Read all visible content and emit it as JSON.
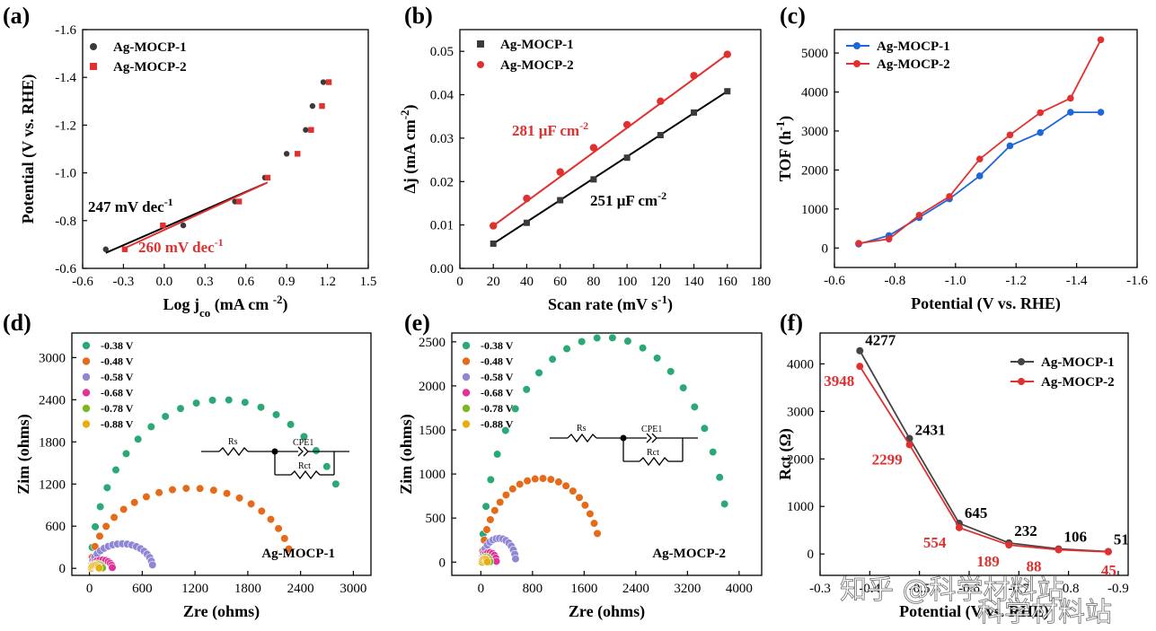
{
  "colors": {
    "black": "#000000",
    "red": "#e03030",
    "blue": "#1f66d8",
    "darkgray": "#3a3a3a",
    "green": "#2aa876",
    "orange": "#e56b1a",
    "purple": "#8f86d6",
    "magenta": "#e0329a",
    "lime": "#79b81f",
    "yellow": "#e8ad10",
    "gray": "#444444"
  },
  "chart_data": [
    {
      "panel": "(a)",
      "type": "scatter",
      "xlabel": "Log j",
      "xlabel_sub": "co",
      "xlabel_unit": " (mA cm ",
      "xlabel_sup": "-2",
      "xlabel_end": ")",
      "ylabel": "Potential (V vs. RHE)",
      "xlim": [
        -0.6,
        1.5
      ],
      "ylim": [
        -0.6,
        -1.6
      ],
      "y_inverted": true,
      "xticks": [
        -0.6,
        -0.3,
        0.0,
        0.3,
        0.6,
        0.9,
        1.2,
        1.5
      ],
      "xtick_labels": [
        "-0.6",
        "-0.3",
        "0.0",
        "0.3",
        "0.6",
        "0.9",
        "1.2",
        "1.5"
      ],
      "yticks": [
        -0.6,
        -0.8,
        -1.0,
        -1.2,
        -1.4,
        -1.6
      ],
      "ytick_labels": [
        "-0.6",
        "-0.8",
        "-1.0",
        "-1.2",
        "-1.4",
        "-1.6"
      ],
      "series": [
        {
          "name": "Ag-MOCP-1",
          "marker": "circle",
          "color": "#3a3a3a",
          "x": [
            -0.43,
            0.14,
            0.52,
            0.74,
            0.9,
            1.04,
            1.09,
            1.17
          ],
          "y": [
            -0.68,
            -0.78,
            -0.88,
            -0.98,
            -1.08,
            -1.18,
            -1.28,
            -1.38
          ],
          "fit": {
            "x": [
              -0.43,
              0.74
            ],
            "y": [
              -0.665,
              -0.955
            ],
            "color": "#000000"
          }
        },
        {
          "name": "Ag-MOCP-2",
          "marker": "square",
          "color": "#e03030",
          "x": [
            -0.29,
            -0.01,
            0.55,
            0.76,
            0.98,
            1.08,
            1.16,
            1.21
          ],
          "y": [
            -0.68,
            -0.78,
            -0.88,
            -0.98,
            -1.08,
            -1.18,
            -1.28,
            -1.38
          ],
          "fit": {
            "x": [
              -0.29,
              0.76
            ],
            "y": [
              -0.685,
              -0.96
            ],
            "color": "#e03030"
          }
        }
      ],
      "annotations": [
        {
          "text": "247 mV dec",
          "sup": "-1",
          "color": "#000000"
        },
        {
          "text": "260 mV dec",
          "sup": "-1",
          "color": "#e03030"
        }
      ]
    },
    {
      "panel": "(b)",
      "type": "scatter",
      "xlabel": "Scan rate (mV s",
      "xlabel_sup": "-1",
      "xlabel_end": ")",
      "ylabel": "Δj (mA cm",
      "ylabel_sup": "-2",
      "ylabel_end": ")",
      "xlim": [
        0,
        180
      ],
      "ylim": [
        0.0,
        0.055
      ],
      "xticks": [
        0,
        20,
        40,
        60,
        80,
        100,
        120,
        140,
        160,
        180
      ],
      "xtick_labels": [
        "0",
        "20",
        "40",
        "60",
        "80",
        "100",
        "120",
        "140",
        "160",
        "180"
      ],
      "yticks": [
        0.0,
        0.01,
        0.02,
        0.03,
        0.04,
        0.05
      ],
      "ytick_labels": [
        "0.00",
        "0.01",
        "0.02",
        "0.03",
        "0.04",
        "0.05"
      ],
      "series": [
        {
          "name": "Ag-MOCP-1",
          "marker": "square",
          "color": "#3a3a3a",
          "line": "#000000",
          "x": [
            20,
            40,
            60,
            80,
            100,
            120,
            140,
            160
          ],
          "y": [
            0.0057,
            0.0105,
            0.0157,
            0.0205,
            0.0255,
            0.0307,
            0.0359,
            0.0408
          ]
        },
        {
          "name": "Ag-MOCP-2",
          "marker": "circle",
          "color": "#e03030",
          "line": "#e03030",
          "x": [
            20,
            40,
            60,
            80,
            100,
            120,
            140,
            160
          ],
          "y": [
            0.0098,
            0.0161,
            0.0222,
            0.0278,
            0.0331,
            0.0385,
            0.0444,
            0.0493
          ]
        }
      ],
      "annotations": [
        {
          "text": "281 μF cm",
          "sup": "-2",
          "color": "#e03030"
        },
        {
          "text": "251 μF cm",
          "sup": "-2",
          "color": "#000000"
        }
      ]
    },
    {
      "panel": "(c)",
      "type": "line",
      "xlabel": "Potential (V vs. RHE)",
      "ylabel": "TOF (h",
      "ylabel_sup": "-1",
      "ylabel_end": ")",
      "xlim": [
        -0.6,
        -1.6
      ],
      "ylim": [
        -500,
        5600
      ],
      "x_inverted": true,
      "xticks": [
        -0.6,
        -0.8,
        -1.0,
        -1.2,
        -1.4,
        -1.6
      ],
      "xtick_labels": [
        "-0.6",
        "-0.8",
        "-1.0",
        "-1.2",
        "-1.4",
        "-1.6"
      ],
      "yticks": [
        0,
        1000,
        2000,
        3000,
        4000,
        5000
      ],
      "ytick_labels": [
        "0",
        "1000",
        "2000",
        "3000",
        "4000",
        "5000"
      ],
      "series": [
        {
          "name": "Ag-MOCP-1",
          "color": "#1f66d8",
          "x": [
            -0.68,
            -0.78,
            -0.88,
            -0.98,
            -1.08,
            -1.18,
            -1.28,
            -1.38,
            -1.48
          ],
          "y": [
            100,
            320,
            780,
            1260,
            1850,
            2620,
            2960,
            3480,
            3480
          ]
        },
        {
          "name": "Ag-MOCP-2",
          "color": "#e03030",
          "x": [
            -0.68,
            -0.78,
            -0.88,
            -0.98,
            -1.08,
            -1.18,
            -1.28,
            -1.38,
            -1.48
          ],
          "y": [
            120,
            230,
            840,
            1320,
            2280,
            2900,
            3470,
            3840,
            5340
          ]
        }
      ]
    },
    {
      "panel": "(d)",
      "type": "scatter",
      "xlabel": "Zre (ohms)",
      "ylabel": "Zim (ohms)",
      "xlim": [
        -200,
        3200
      ],
      "ylim": [
        -100,
        3350
      ],
      "xticks": [
        0,
        600,
        1200,
        1800,
        2400,
        3000
      ],
      "xtick_labels": [
        "0",
        "600",
        "1200",
        "1800",
        "2400",
        "3000"
      ],
      "yticks": [
        0,
        600,
        1200,
        1800,
        2400,
        3000
      ],
      "ytick_labels": [
        "0",
        "600",
        "1200",
        "1800",
        "2400",
        "3000"
      ],
      "inset_label": "Ag-MOCP-1",
      "series": [
        {
          "name": "-0.38 V",
          "color": "#2aa876",
          "arc": {
            "start": 20,
            "end": 3000,
            "r": 2400,
            "maxAngle": 150,
            "n": 22
          }
        },
        {
          "name": "-0.48 V",
          "color": "#e56b1a",
          "arc": {
            "start": 20,
            "end": 2300,
            "r": 1140,
            "maxAngle": 166,
            "n": 22
          }
        },
        {
          "name": "-0.58 V",
          "color": "#8f86d6",
          "arc": {
            "start": 20,
            "end": 720,
            "r": 350,
            "maxAngle": 172,
            "n": 20
          }
        },
        {
          "name": "-0.68 V",
          "color": "#e0329a",
          "arc": {
            "start": 20,
            "end": 260,
            "r": 120,
            "maxAngle": 175,
            "n": 12
          }
        },
        {
          "name": "-0.78 V",
          "color": "#79b81f",
          "arc": {
            "start": 20,
            "end": 150,
            "r": 65,
            "maxAngle": 175,
            "n": 10
          }
        },
        {
          "name": "-0.88 V",
          "color": "#e8ad10",
          "arc": {
            "start": 20,
            "end": 110,
            "r": 45,
            "maxAngle": 175,
            "n": 8
          }
        }
      ],
      "circuit": {
        "r1": "Rs",
        "cpe": "CPE1",
        "r2": "Rct"
      }
    },
    {
      "panel": "(e)",
      "type": "scatter",
      "xlabel": "Zre (ohms)",
      "ylabel": "Zim (ohms)",
      "xlim": [
        -450,
        4350
      ],
      "ylim": [
        -150,
        2600
      ],
      "xticks": [
        0,
        800,
        1600,
        2400,
        3200,
        4000
      ],
      "xtick_labels": [
        "0",
        "800",
        "1600",
        "2400",
        "3200",
        "4000"
      ],
      "yticks": [
        0,
        500,
        1000,
        1500,
        2000,
        2500
      ],
      "ytick_labels": [
        "0",
        "500",
        "1000",
        "1500",
        "2000",
        "2500"
      ],
      "inset_label": "Ag-MOCP-2",
      "series": [
        {
          "name": "-0.38 V",
          "color": "#2aa876",
          "arc": {
            "start": 20,
            "end": 3840,
            "r": 2550,
            "maxAngle": 165,
            "n": 24
          }
        },
        {
          "name": "-0.48 V",
          "color": "#e56b1a",
          "arc": {
            "start": 20,
            "end": 1860,
            "r": 950,
            "maxAngle": 160,
            "n": 22
          }
        },
        {
          "name": "-0.58 V",
          "color": "#8f86d6",
          "arc": {
            "start": 20,
            "end": 540,
            "r": 270,
            "maxAngle": 172,
            "n": 16
          }
        },
        {
          "name": "-0.68 V",
          "color": "#e0329a",
          "arc": {
            "start": 20,
            "end": 240,
            "r": 110,
            "maxAngle": 175,
            "n": 10
          }
        },
        {
          "name": "-0.78 V",
          "color": "#79b81f",
          "arc": {
            "start": 20,
            "end": 140,
            "r": 60,
            "maxAngle": 175,
            "n": 8
          }
        },
        {
          "name": "-0.88 V",
          "color": "#e8ad10",
          "arc": {
            "start": 20,
            "end": 100,
            "r": 40,
            "maxAngle": 175,
            "n": 6
          }
        }
      ],
      "circuit": {
        "r1": "Rs",
        "cpe": "CPE1",
        "r2": "Rct"
      }
    },
    {
      "panel": "(f)",
      "type": "line",
      "xlabel": "Potential (V vs. RHE)",
      "ylabel": "Rct (Ω)",
      "xlim": [
        -0.3,
        -0.92
      ],
      "ylim": [
        -450,
        4650
      ],
      "x_inverted": true,
      "xticks": [
        -0.3,
        -0.4,
        -0.5,
        -0.6,
        -0.7,
        -0.8,
        -0.9
      ],
      "xtick_labels": [
        "-0.3",
        "-0.4",
        "-0.5",
        "-0.6",
        "-0.7",
        "-0.8",
        "-0.9"
      ],
      "yticks": [
        0,
        1000,
        2000,
        3000,
        4000
      ],
      "ytick_labels": [
        "0",
        "1000",
        "2000",
        "3000",
        "4000"
      ],
      "series": [
        {
          "name": "Ag-MOCP-1",
          "color": "#444444",
          "x": [
            -0.38,
            -0.48,
            -0.58,
            -0.68,
            -0.78,
            -0.88
          ],
          "y": [
            4277,
            2431,
            645,
            232,
            106,
            51
          ],
          "labels": [
            "4277",
            "2431",
            "645",
            "232",
            "106",
            "51"
          ]
        },
        {
          "name": "Ag-MOCP-2",
          "color": "#e03030",
          "x": [
            -0.38,
            -0.48,
            -0.58,
            -0.68,
            -0.78,
            -0.88
          ],
          "y": [
            3948,
            2299,
            554,
            189,
            88,
            45
          ],
          "labels": [
            "3948",
            "2299",
            "554",
            "189",
            "88",
            "45"
          ]
        }
      ]
    }
  ],
  "watermark": {
    "line1": "知乎 @科学材料站",
    "line2": "科学材料站"
  }
}
